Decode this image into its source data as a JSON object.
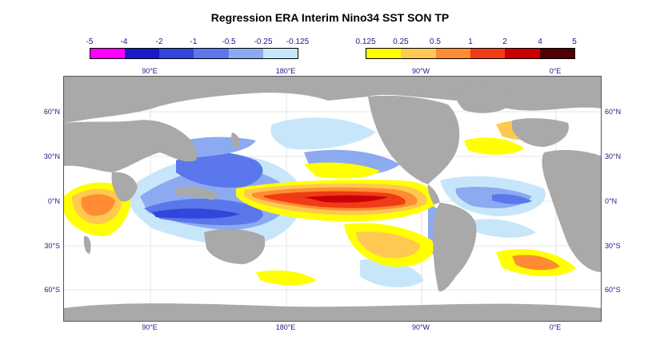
{
  "title": "Regression ERA Interim Nino34 SST SON TP",
  "colorbar_negative": {
    "labels": [
      "-5",
      "-4",
      "-2",
      "-1",
      "-0.5",
      "-0.25",
      "-0.125"
    ],
    "colors": [
      "#ff00ff",
      "#1a1ac8",
      "#3246dc",
      "#5a78eb",
      "#8caaf0",
      "#c8e6fa"
    ]
  },
  "colorbar_positive": {
    "labels": [
      "0.125",
      "0.25",
      "0.5",
      "1",
      "2",
      "4",
      "5"
    ],
    "colors": [
      "#ffff00",
      "#ffc850",
      "#ff8c32",
      "#f03c14",
      "#c80000",
      "#500000"
    ]
  },
  "lon_labels": [
    "90°E",
    "180°E",
    "90°W",
    "0°E"
  ],
  "lat_labels": [
    "60°N",
    "30°N",
    "0°N",
    "30°S",
    "60°S"
  ],
  "colors": {
    "land": "#a9a9a9",
    "ocean": "#ffffff"
  }
}
